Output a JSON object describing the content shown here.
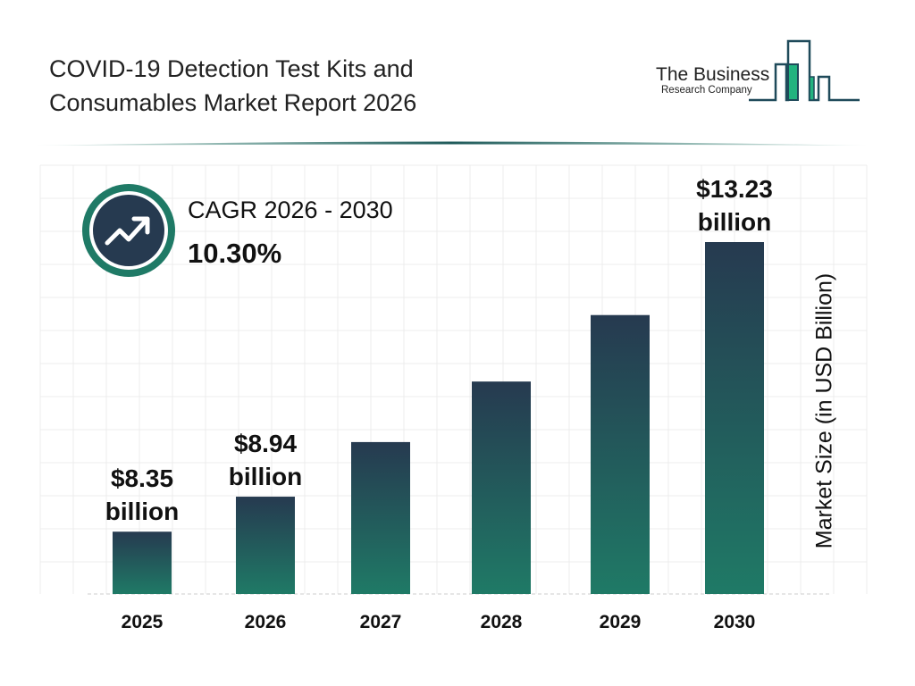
{
  "header": {
    "title_line1": "COVID-19 Detection Test Kits and",
    "title_line2": "Consumables Market Report 2026"
  },
  "logo": {
    "text_line1": "The Business",
    "text_line2": "Research Company"
  },
  "cagr": {
    "label": "CAGR 2026 - 2030",
    "value": "10.30%",
    "icon": "trending-up-icon"
  },
  "colors": {
    "bar_top": "#263a50",
    "bar_bottom": "#1f7a66",
    "accent": "#1f7a66",
    "logo_green": "#22b37f"
  },
  "chart_data": {
    "type": "bar",
    "title": "",
    "xlabel": "",
    "ylabel": "Market Size (in USD Billion)",
    "categories": [
      "2025",
      "2026",
      "2027",
      "2028",
      "2029",
      "2030"
    ],
    "values": [
      8.35,
      8.94,
      9.86,
      10.88,
      12.0,
      13.23
    ],
    "data_labels": [
      {
        "index": 0,
        "line1": "$8.35",
        "line2": "billion"
      },
      {
        "index": 1,
        "line1": "$8.94",
        "line2": "billion"
      },
      {
        "index": 5,
        "line1": "$13.23",
        "line2": "billion"
      }
    ],
    "grid": true,
    "legend": "none"
  }
}
